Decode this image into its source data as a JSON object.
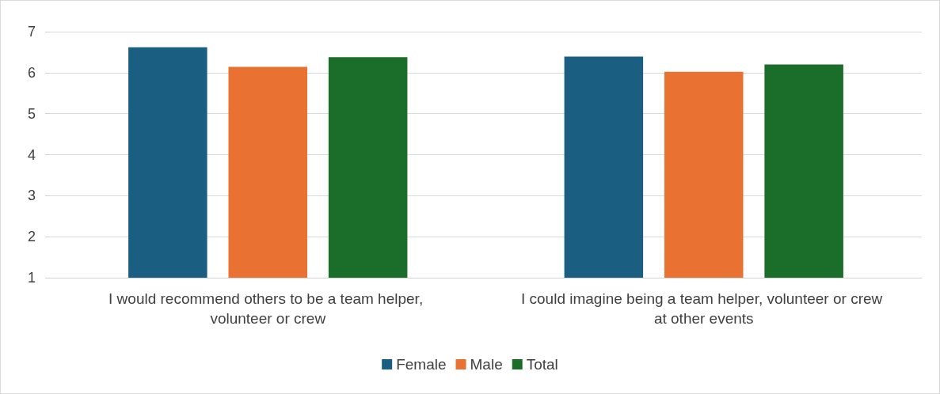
{
  "chart_data": {
    "type": "bar",
    "categories": [
      "I would recommend others to be a team helper, volunteer or crew",
      "I could imagine being a team helper, volunteer or crew at other events"
    ],
    "series": [
      {
        "name": "Female",
        "color": "#1a5f82",
        "values": [
          6.62,
          6.39
        ]
      },
      {
        "name": "Male",
        "color": "#e97132",
        "values": [
          6.14,
          6.02
        ]
      },
      {
        "name": "Total",
        "color": "#1b6e2a",
        "values": [
          6.38,
          6.2
        ]
      }
    ],
    "ylim": [
      1,
      7
    ],
    "yticks": [
      1,
      2,
      3,
      4,
      5,
      6,
      7
    ],
    "grid": "y",
    "legend": "bottom"
  }
}
